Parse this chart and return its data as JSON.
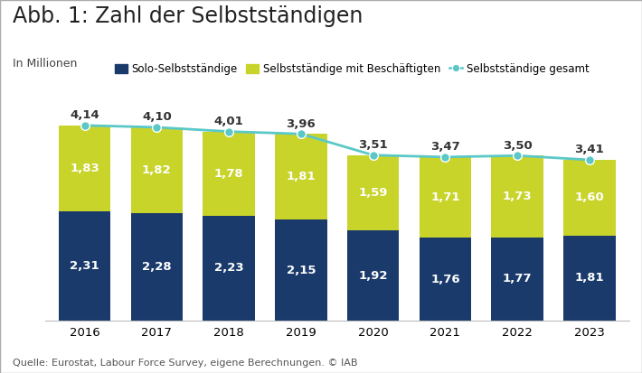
{
  "title": "Abb. 1: Zahl der Selbstständigen",
  "subtitle": "In Millionen",
  "years": [
    2016,
    2017,
    2018,
    2019,
    2020,
    2021,
    2022,
    2023
  ],
  "solo": [
    2.31,
    2.28,
    2.23,
    2.15,
    1.92,
    1.76,
    1.77,
    1.81
  ],
  "mit_beschaeftigten": [
    1.83,
    1.82,
    1.78,
    1.81,
    1.59,
    1.71,
    1.73,
    1.6
  ],
  "gesamt": [
    4.14,
    4.1,
    4.01,
    3.96,
    3.51,
    3.47,
    3.5,
    3.41
  ],
  "color_solo": "#1a3a6b",
  "color_mit": "#c8d42a",
  "color_gesamt": "#5bc8c8",
  "legend_solo": "Solo-Selbstständige",
  "legend_mit": "Selbstständige mit Beschäftigten",
  "legend_gesamt": "Selbstständige gesamt",
  "source": "Quelle: Eurostat, Labour Force Survey, eigene Berechnungen. © IAB",
  "ylim": [
    0,
    4.9
  ],
  "bar_width": 0.72,
  "background_color": "#ffffff",
  "title_fontsize": 17,
  "label_fontsize": 9.5,
  "legend_fontsize": 8.5,
  "tick_fontsize": 9.5,
  "subtitle_fontsize": 9,
  "source_fontsize": 8
}
